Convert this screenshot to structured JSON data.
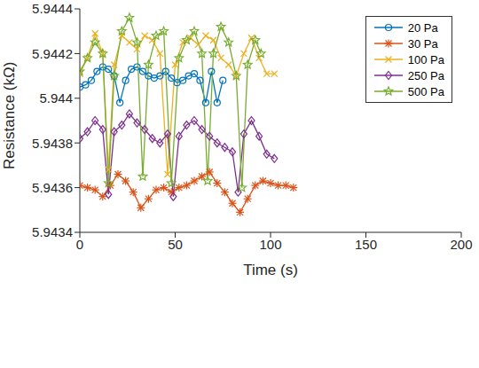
{
  "chart_data": {
    "type": "line",
    "x_label": "Time (s)",
    "y_label": "Resistance (kΩ)",
    "xlim": [
      0,
      200
    ],
    "xticks": [
      0,
      50,
      100,
      150,
      200
    ],
    "ylim": [
      5.9434,
      5.9444
    ],
    "yticks": [
      5.9434,
      5.9436,
      5.9438,
      5.944,
      5.9442,
      5.9444
    ],
    "legend": "upper right",
    "grid": false,
    "series": [
      {
        "name": "20 Pa",
        "color": "#0072BD",
        "marker": "circle",
        "x": [
          0,
          3,
          6,
          9,
          12,
          15,
          18,
          21,
          24,
          27,
          30,
          33,
          36,
          39,
          42,
          45,
          48,
          51,
          54,
          57,
          60,
          63,
          66,
          69,
          72,
          75
        ],
        "values": [
          5.94405,
          5.94406,
          5.94408,
          5.94412,
          5.94414,
          5.94413,
          5.9441,
          5.94398,
          5.94408,
          5.94413,
          5.94414,
          5.94412,
          5.9441,
          5.94409,
          5.9441,
          5.94412,
          5.94409,
          5.94407,
          5.94408,
          5.9441,
          5.94411,
          5.94408,
          5.94398,
          5.94412,
          5.94398,
          5.94408
        ]
      },
      {
        "name": "30 Pa",
        "color": "#D95319",
        "marker": "asterisk",
        "x": [
          0,
          4,
          8,
          12,
          16,
          20,
          24,
          28,
          32,
          36,
          40,
          44,
          48,
          52,
          56,
          60,
          64,
          68,
          72,
          76,
          80,
          84,
          88,
          92,
          96,
          100,
          104,
          108,
          112
        ],
        "values": [
          5.94361,
          5.9436,
          5.94359,
          5.94356,
          5.94361,
          5.94366,
          5.94363,
          5.94358,
          5.94351,
          5.94355,
          5.94359,
          5.9436,
          5.94358,
          5.9436,
          5.94361,
          5.94363,
          5.94365,
          5.94367,
          5.94362,
          5.94358,
          5.94353,
          5.94349,
          5.94355,
          5.94361,
          5.94363,
          5.94362,
          5.94361,
          5.94361,
          5.9436
        ]
      },
      {
        "name": "100 Pa",
        "color": "#EDB120",
        "marker": "x",
        "x": [
          0,
          4,
          8,
          12,
          15,
          18,
          22,
          26,
          30,
          34,
          38,
          42,
          46,
          50,
          54,
          58,
          62,
          66,
          70,
          74,
          78,
          82,
          86,
          90,
          94,
          98,
          102
        ],
        "values": [
          5.94411,
          5.94418,
          5.94429,
          5.9442,
          5.94368,
          5.94415,
          5.94428,
          5.94425,
          5.94422,
          5.94428,
          5.94426,
          5.9442,
          5.94366,
          5.94415,
          5.94425,
          5.94427,
          5.94424,
          5.94428,
          5.94426,
          5.94418,
          5.94415,
          5.9441,
          5.9442,
          5.94427,
          5.94418,
          5.94411,
          5.94411
        ]
      },
      {
        "name": "250 Pa",
        "color": "#7E2F8E",
        "marker": "diamond",
        "x": [
          0,
          4,
          8,
          12,
          15,
          18,
          22,
          26,
          30,
          34,
          38,
          42,
          46,
          49,
          52,
          56,
          60,
          64,
          68,
          72,
          76,
          80,
          83,
          86,
          90,
          94,
          98,
          102
        ],
        "values": [
          5.94382,
          5.94385,
          5.9439,
          5.94386,
          5.94357,
          5.94385,
          5.94388,
          5.94393,
          5.94389,
          5.94386,
          5.94382,
          5.9438,
          5.94384,
          5.94356,
          5.94383,
          5.94388,
          5.9439,
          5.94386,
          5.94383,
          5.9438,
          5.94378,
          5.94376,
          5.94358,
          5.94384,
          5.9439,
          5.94383,
          5.94375,
          5.94373
        ]
      },
      {
        "name": "500 Pa",
        "color": "#77AC30",
        "marker": "star",
        "x": [
          0,
          4,
          8,
          12,
          15,
          18,
          22,
          26,
          30,
          33,
          36,
          40,
          44,
          48,
          52,
          56,
          60,
          64,
          67,
          70,
          74,
          78,
          82,
          85,
          88,
          92,
          95
        ],
        "values": [
          5.94412,
          5.94418,
          5.94425,
          5.9442,
          5.94362,
          5.9441,
          5.9443,
          5.94436,
          5.94425,
          5.94365,
          5.94415,
          5.94428,
          5.9443,
          5.94362,
          5.94418,
          5.94426,
          5.9443,
          5.9442,
          5.94363,
          5.9442,
          5.94432,
          5.94425,
          5.9441,
          5.9436,
          5.94415,
          5.94426,
          5.9442
        ]
      }
    ]
  }
}
